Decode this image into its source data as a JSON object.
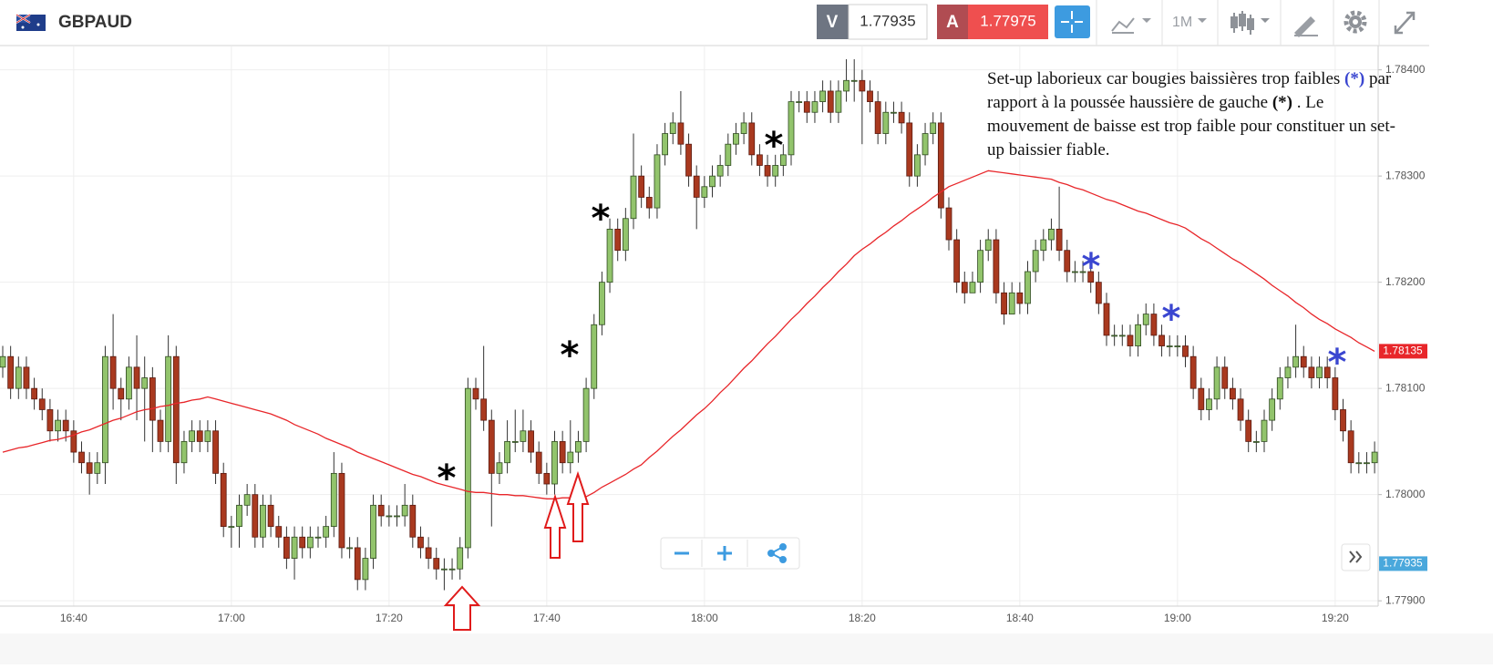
{
  "header": {
    "symbol": "GBPAUD",
    "bid_label": "V",
    "bid": "1.77935",
    "ask_label": "A",
    "ask": "1.77975",
    "timeframe": "1M"
  },
  "note": [
    "Set-up laborieux car bougies baissières trop faibles ",
    "(*)",
    " par rapport à la poussée haussière de gauche ",
    "(*)",
    " . Le mouvement de baisse est trop faible pour constituer un set-up baissier fiable."
  ],
  "note_colors": [
    "#111111",
    "#3a46d0",
    "#111111",
    "#111111",
    "#111111"
  ],
  "chart_data": {
    "type": "candlestick",
    "categories": [
      null,
      null,
      null,
      null,
      null,
      null,
      null,
      null,
      null,
      "16:40",
      null,
      null,
      null,
      null,
      null,
      null,
      null,
      null,
      null,
      null,
      null,
      null,
      null,
      null,
      null,
      null,
      null,
      null,
      null,
      "17:00",
      null,
      null,
      null,
      null,
      null,
      null,
      null,
      null,
      null,
      null,
      null,
      null,
      null,
      null,
      null,
      null,
      null,
      null,
      null,
      "17:20",
      null,
      null,
      null,
      null,
      null,
      null,
      null,
      null,
      null,
      null,
      null,
      null,
      null,
      null,
      null,
      null,
      null,
      null,
      null,
      "17:40",
      null,
      null,
      null,
      null,
      null,
      null,
      null,
      null,
      null,
      null,
      null,
      null,
      null,
      null,
      null,
      null,
      null,
      null,
      null,
      "18:00",
      null,
      null,
      null,
      null,
      null,
      null,
      null,
      null,
      null,
      null,
      null,
      null,
      null,
      null,
      null,
      null,
      null,
      null,
      null,
      "18:20",
      null,
      null,
      null,
      null,
      null,
      null,
      null,
      null,
      null,
      null,
      null,
      null,
      null,
      null,
      null,
      null,
      null,
      null,
      null,
      "18:40",
      null,
      null,
      null,
      null,
      null,
      null,
      null,
      null,
      null,
      null,
      null,
      null,
      null,
      null,
      null,
      null,
      null,
      null,
      null,
      "19:00",
      null,
      null,
      null,
      null,
      null,
      null,
      null,
      null,
      null,
      null,
      null,
      null,
      null,
      null,
      null,
      null,
      null,
      null,
      null,
      "19:20",
      null,
      null,
      null,
      null,
      null
    ],
    "open": [
      1.7812,
      1.7813,
      1.781,
      1.7812,
      1.781,
      1.7809,
      1.7808,
      1.7806,
      1.7807,
      1.7806,
      1.7804,
      1.7803,
      1.7802,
      1.7803,
      1.7813,
      1.781,
      1.7809,
      1.7812,
      1.781,
      1.7811,
      1.7807,
      1.7805,
      1.7813,
      1.7803,
      1.7805,
      1.7806,
      1.7805,
      1.7806,
      1.7802,
      1.7797,
      1.7797,
      1.7799,
      1.78,
      1.7796,
      1.7799,
      1.7797,
      1.7796,
      1.7794,
      1.7796,
      1.7795,
      1.7796,
      1.7796,
      1.7797,
      1.7802,
      1.7795,
      1.7795,
      1.7792,
      1.7794,
      1.7799,
      1.7798,
      1.7798,
      1.7798,
      1.7799,
      1.7796,
      1.7795,
      1.7794,
      1.7793,
      1.7793,
      1.7793,
      1.7795,
      1.781,
      1.7809,
      1.7807,
      1.7802,
      1.7803,
      1.7805,
      1.7805,
      1.7806,
      1.7804,
      1.7802,
      1.7801,
      1.7805,
      1.7803,
      1.7804,
      1.7805,
      1.781,
      1.7816,
      1.782,
      1.7825,
      1.7823,
      1.7826,
      1.783,
      1.7828,
      1.7827,
      1.7832,
      1.7834,
      1.7835,
      1.7833,
      1.783,
      1.7828,
      1.7829,
      1.783,
      1.7831,
      1.7833,
      1.7834,
      1.7835,
      1.7832,
      1.7831,
      1.783,
      1.7831,
      1.7832,
      1.7837,
      1.7837,
      1.7836,
      1.7837,
      1.7838,
      1.7836,
      1.7838,
      1.7839,
      1.7839,
      1.7838,
      1.7837,
      1.7834,
      1.7836,
      1.7836,
      1.7835,
      1.783,
      1.7832,
      1.7834,
      1.7835,
      1.7827,
      1.7824,
      1.782,
      1.7819,
      1.782,
      1.7823,
      1.7824,
      1.7819,
      1.7817,
      1.7819,
      1.7818,
      1.7821,
      1.7823,
      1.7824,
      1.7825,
      1.7823,
      1.7821,
      1.7821,
      1.7821,
      1.782,
      1.7818,
      1.7815,
      1.7815,
      1.7815,
      1.7814,
      1.7816,
      1.7817,
      1.7815,
      1.7814,
      1.7814,
      1.7814,
      1.7813,
      1.781,
      1.7808,
      1.7809,
      1.7812,
      1.781,
      1.7809,
      1.7807,
      1.7805,
      1.7805,
      1.7807,
      1.7809,
      1.7811,
      1.7812,
      1.7813,
      1.7812,
      1.7811,
      1.7812,
      1.7811,
      1.7808,
      1.7806,
      1.7803,
      1.7803,
      1.7803
    ],
    "high": [
      1.7814,
      1.7814,
      1.7813,
      1.7813,
      1.7811,
      1.781,
      1.7809,
      1.7808,
      1.7808,
      1.7807,
      1.7805,
      1.7804,
      1.7804,
      1.7814,
      1.7817,
      1.7811,
      1.7813,
      1.7815,
      1.7813,
      1.7812,
      1.7808,
      1.7815,
      1.7814,
      1.7806,
      1.7807,
      1.7807,
      1.7807,
      1.7807,
      1.7803,
      1.7798,
      1.78,
      1.7801,
      1.7801,
      1.78,
      1.78,
      1.7798,
      1.7797,
      1.7797,
      1.7797,
      1.7797,
      1.7797,
      1.7798,
      1.7804,
      1.7803,
      1.7796,
      1.7796,
      1.7795,
      1.78,
      1.78,
      1.7799,
      1.7799,
      1.7801,
      1.78,
      1.7797,
      1.7796,
      1.7795,
      1.7794,
      1.7794,
      1.7796,
      1.7811,
      1.7811,
      1.7814,
      1.7808,
      1.7804,
      1.7807,
      1.7808,
      1.7808,
      1.7807,
      1.7805,
      1.7803,
      1.7806,
      1.7806,
      1.7807,
      1.7806,
      1.7811,
      1.7817,
      1.7821,
      1.7826,
      1.7826,
      1.7827,
      1.7834,
      1.7831,
      1.7829,
      1.7833,
      1.7835,
      1.7836,
      1.7838,
      1.7834,
      1.7831,
      1.783,
      1.7831,
      1.7832,
      1.7834,
      1.7835,
      1.7836,
      1.7836,
      1.7833,
      1.7832,
      1.7832,
      1.7833,
      1.7838,
      1.7838,
      1.7838,
      1.7838,
      1.7839,
      1.7839,
      1.7839,
      1.7841,
      1.7841,
      1.784,
      1.7839,
      1.7838,
      1.7837,
      1.7837,
      1.7837,
      1.7836,
      1.7833,
      1.7835,
      1.7836,
      1.7836,
      1.7828,
      1.7825,
      1.7821,
      1.7821,
      1.7824,
      1.7825,
      1.7825,
      1.782,
      1.782,
      1.782,
      1.7822,
      1.7824,
      1.7825,
      1.7826,
      1.7829,
      1.7824,
      1.7822,
      1.7822,
      1.7822,
      1.7821,
      1.7819,
      1.7816,
      1.7816,
      1.7816,
      1.7817,
      1.7818,
      1.7818,
      1.7816,
      1.7815,
      1.7815,
      1.7815,
      1.7814,
      1.7811,
      1.781,
      1.7813,
      1.7813,
      1.7811,
      1.781,
      1.7808,
      1.7806,
      1.7808,
      1.781,
      1.7812,
      1.7813,
      1.7816,
      1.7814,
      1.7813,
      1.7813,
      1.7813,
      1.7812,
      1.7809,
      1.7807,
      1.7804,
      1.7804,
      1.7805
    ],
    "low": [
      1.7811,
      1.7809,
      1.7809,
      1.7809,
      1.7808,
      1.7807,
      1.7805,
      1.7805,
      1.7805,
      1.7803,
      1.7802,
      1.78,
      1.7801,
      1.7801,
      1.7808,
      1.7807,
      1.7808,
      1.7807,
      1.7805,
      1.7804,
      1.7804,
      1.7804,
      1.7801,
      1.7802,
      1.7804,
      1.7804,
      1.7804,
      1.7801,
      1.7796,
      1.7795,
      1.7795,
      1.7798,
      1.7795,
      1.7795,
      1.7796,
      1.7795,
      1.7793,
      1.7792,
      1.7794,
      1.7794,
      1.7795,
      1.7795,
      1.7796,
      1.7794,
      1.7794,
      1.7791,
      1.7791,
      1.7793,
      1.7797,
      1.7797,
      1.7797,
      1.7797,
      1.7795,
      1.7794,
      1.7793,
      1.7792,
      1.7791,
      1.7792,
      1.7792,
      1.7794,
      1.7808,
      1.7806,
      1.7797,
      1.7801,
      1.7802,
      1.7804,
      1.7804,
      1.7803,
      1.7801,
      1.78,
      1.78,
      1.7802,
      1.7802,
      1.7803,
      1.7804,
      1.7809,
      1.7815,
      1.7819,
      1.7822,
      1.7822,
      1.7825,
      1.7827,
      1.7826,
      1.7826,
      1.7831,
      1.7833,
      1.7832,
      1.7829,
      1.7825,
      1.7827,
      1.7828,
      1.7829,
      1.783,
      1.7832,
      1.7833,
      1.7831,
      1.783,
      1.7829,
      1.7829,
      1.783,
      1.7831,
      1.7836,
      1.7835,
      1.7835,
      1.7836,
      1.7835,
      1.7835,
      1.7837,
      1.7837,
      1.7833,
      1.7836,
      1.7833,
      1.7833,
      1.7835,
      1.7834,
      1.7829,
      1.7829,
      1.7831,
      1.7833,
      1.7826,
      1.7823,
      1.7819,
      1.7818,
      1.7819,
      1.7819,
      1.7822,
      1.7818,
      1.7816,
      1.7817,
      1.7817,
      1.7817,
      1.782,
      1.7822,
      1.7823,
      1.7822,
      1.782,
      1.782,
      1.782,
      1.7819,
      1.7817,
      1.7814,
      1.7814,
      1.7814,
      1.7813,
      1.7813,
      1.7815,
      1.7814,
      1.7813,
      1.7813,
      1.7813,
      1.7812,
      1.7809,
      1.7807,
      1.7807,
      1.7808,
      1.7809,
      1.7808,
      1.7806,
      1.7804,
      1.7804,
      1.7804,
      1.7806,
      1.7808,
      1.781,
      1.7811,
      1.7811,
      1.781,
      1.781,
      1.781,
      1.7807,
      1.7805,
      1.7802,
      1.7802,
      1.7802,
      1.7802
    ],
    "close": [
      1.7813,
      1.781,
      1.7812,
      1.781,
      1.7809,
      1.7808,
      1.7806,
      1.7807,
      1.7806,
      1.7804,
      1.7803,
      1.7802,
      1.7803,
      1.7813,
      1.781,
      1.7809,
      1.7812,
      1.781,
      1.7811,
      1.7807,
      1.7805,
      1.7813,
      1.7803,
      1.7805,
      1.7806,
      1.7805,
      1.7806,
      1.7802,
      1.7797,
      1.7797,
      1.7799,
      1.78,
      1.7796,
      1.7799,
      1.7797,
      1.7796,
      1.7794,
      1.7796,
      1.7795,
      1.7796,
      1.7796,
      1.7797,
      1.7802,
      1.7795,
      1.7795,
      1.7792,
      1.7794,
      1.7799,
      1.7798,
      1.7798,
      1.7798,
      1.7799,
      1.7796,
      1.7795,
      1.7794,
      1.7793,
      1.7793,
      1.7793,
      1.7795,
      1.781,
      1.7809,
      1.7807,
      1.7802,
      1.7803,
      1.7805,
      1.7805,
      1.7806,
      1.7804,
      1.7802,
      1.7801,
      1.7805,
      1.7803,
      1.7804,
      1.7805,
      1.781,
      1.7816,
      1.782,
      1.7825,
      1.7823,
      1.7826,
      1.783,
      1.7828,
      1.7827,
      1.7832,
      1.7834,
      1.7835,
      1.7833,
      1.783,
      1.7828,
      1.7829,
      1.783,
      1.7831,
      1.7833,
      1.7834,
      1.7835,
      1.7832,
      1.7831,
      1.783,
      1.7831,
      1.7832,
      1.7837,
      1.7837,
      1.7836,
      1.7837,
      1.7838,
      1.7836,
      1.7838,
      1.7839,
      1.7839,
      1.7838,
      1.7837,
      1.7834,
      1.7836,
      1.7836,
      1.7835,
      1.783,
      1.7832,
      1.7834,
      1.7835,
      1.7827,
      1.7824,
      1.782,
      1.7819,
      1.782,
      1.7823,
      1.7824,
      1.7819,
      1.7817,
      1.7819,
      1.7818,
      1.7821,
      1.7823,
      1.7824,
      1.7825,
      1.7823,
      1.7821,
      1.7821,
      1.7821,
      1.782,
      1.7818,
      1.7815,
      1.7815,
      1.7815,
      1.7814,
      1.7816,
      1.7817,
      1.7815,
      1.7814,
      1.7814,
      1.7814,
      1.7813,
      1.781,
      1.7808,
      1.7809,
      1.7812,
      1.781,
      1.7809,
      1.7807,
      1.7805,
      1.7805,
      1.7807,
      1.7809,
      1.7811,
      1.7812,
      1.7813,
      1.7812,
      1.7811,
      1.7812,
      1.7811,
      1.7808,
      1.7806,
      1.7803,
      1.7803,
      1.7803,
      1.7804
    ],
    "up_color": "#92c46c",
    "down_color": "#a9391f",
    "ma": {
      "color": "#e8262a",
      "last_label": "1.78135",
      "values": [
        1.7804,
        1.78042,
        1.78044,
        1.78045,
        1.78047,
        1.78049,
        1.78051,
        1.78052,
        1.78054,
        1.78056,
        1.78059,
        1.78061,
        1.78064,
        1.78067,
        1.7807,
        1.78072,
        1.78075,
        1.78078,
        1.7808,
        1.78081,
        1.78083,
        1.78084,
        1.78086,
        1.78087,
        1.78089,
        1.7809,
        1.78092,
        1.7809,
        1.78088,
        1.78086,
        1.78084,
        1.78082,
        1.7808,
        1.78078,
        1.78076,
        1.78073,
        1.7807,
        1.78066,
        1.78063,
        1.7806,
        1.78057,
        1.78053,
        1.7805,
        1.78047,
        1.78044,
        1.7804,
        1.78037,
        1.78034,
        1.78031,
        1.78028,
        1.78025,
        1.78022,
        1.78019,
        1.78017,
        1.78014,
        1.78011,
        1.78009,
        1.78007,
        1.78005,
        1.78003,
        1.78002,
        1.78002,
        1.78001,
        1.78,
        1.78,
        1.77999,
        1.77999,
        1.77998,
        1.77997,
        1.77996,
        1.77996,
        1.77997,
        1.77997,
        1.77998,
        1.77998,
        1.78002,
        1.78007,
        1.78011,
        1.78015,
        1.78019,
        1.78024,
        1.78028,
        1.78035,
        1.78041,
        1.78048,
        1.78055,
        1.78061,
        1.78068,
        1.78075,
        1.78081,
        1.78088,
        1.78096,
        1.78103,
        1.78111,
        1.78119,
        1.78126,
        1.78134,
        1.78142,
        1.78149,
        1.78157,
        1.78165,
        1.78172,
        1.7818,
        1.78187,
        1.78195,
        1.78202,
        1.7821,
        1.78217,
        1.78225,
        1.78231,
        1.78236,
        1.78242,
        1.78247,
        1.78253,
        1.78258,
        1.78264,
        1.78269,
        1.78274,
        1.7828,
        1.78285,
        1.7829,
        1.78293,
        1.78296,
        1.78299,
        1.78302,
        1.78305,
        1.78304,
        1.78303,
        1.78302,
        1.78301,
        1.783,
        1.78299,
        1.78298,
        1.78297,
        1.78294,
        1.78292,
        1.78289,
        1.78287,
        1.78284,
        1.78281,
        1.78278,
        1.78276,
        1.78273,
        1.7827,
        1.78267,
        1.78265,
        1.78262,
        1.78259,
        1.78256,
        1.78254,
        1.78251,
        1.78246,
        1.78241,
        1.78237,
        1.78232,
        1.78227,
        1.78222,
        1.78218,
        1.78213,
        1.78208,
        1.78203,
        1.78197,
        1.78192,
        1.78187,
        1.78181,
        1.78176,
        1.7817,
        1.78165,
        1.78161,
        1.78156,
        1.78152,
        1.78148,
        1.78143,
        1.78139,
        1.78135
      ]
    },
    "bid_line": {
      "value": 1.77935,
      "label": "1.77935",
      "color": "#4aa8dc"
    },
    "ylim": [
      1.77895,
      1.78422
    ],
    "yticks": [
      {
        "value": 1.779,
        "label": "1.77900"
      },
      {
        "value": 1.78,
        "label": "1.78000"
      },
      {
        "value": 1.781,
        "label": "1.78100"
      },
      {
        "value": 1.782,
        "label": "1.78200"
      },
      {
        "value": 1.783,
        "label": "1.78300"
      },
      {
        "value": 1.784,
        "label": "1.78400"
      }
    ],
    "grid": true,
    "markers": [
      {
        "text": "*",
        "color": "#000000"
      },
      {
        "text": "*",
        "color": "#000000"
      },
      {
        "text": "*",
        "color": "#000000"
      },
      {
        "text": "*",
        "color": "#000000"
      },
      {
        "text": "*",
        "color": "#3a46d0"
      },
      {
        "text": "*",
        "color": "#3a46d0"
      },
      {
        "text": "*",
        "color": "#3a46d0"
      }
    ]
  }
}
